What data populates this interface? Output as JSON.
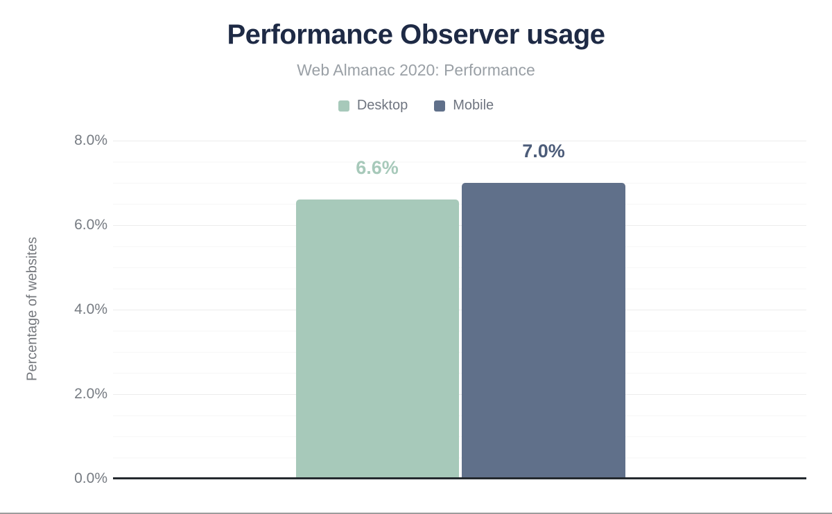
{
  "chart_data": {
    "type": "bar",
    "title": "Performance Observer usage",
    "subtitle": "Web Almanac 2020: Performance",
    "ylabel": "Percentage of websites",
    "ylim": [
      0,
      8
    ],
    "ytick_step": 2,
    "minor_grid_step": 0.5,
    "grid": true,
    "legend_position": "top",
    "yticks": [
      {
        "value": 8,
        "label": "8.0%"
      },
      {
        "value": 6,
        "label": "6.0%"
      },
      {
        "value": 4,
        "label": "4.0%"
      },
      {
        "value": 2,
        "label": "2.0%"
      },
      {
        "value": 0,
        "label": "0.0%"
      }
    ],
    "series": [
      {
        "name": "Desktop",
        "value": 6.6,
        "value_label": "6.6%",
        "color": "#a7c9ba",
        "label_color": "#a7c9ba"
      },
      {
        "name": "Mobile",
        "value": 7.0,
        "value_label": "7.0%",
        "color": "#60708a",
        "label_color": "#4c5c79"
      }
    ],
    "title_color": "#1e2a45",
    "subtitle_color": "#9aa0a6",
    "axis_color": "#24292e",
    "grid_color": "#f2f2f2"
  }
}
